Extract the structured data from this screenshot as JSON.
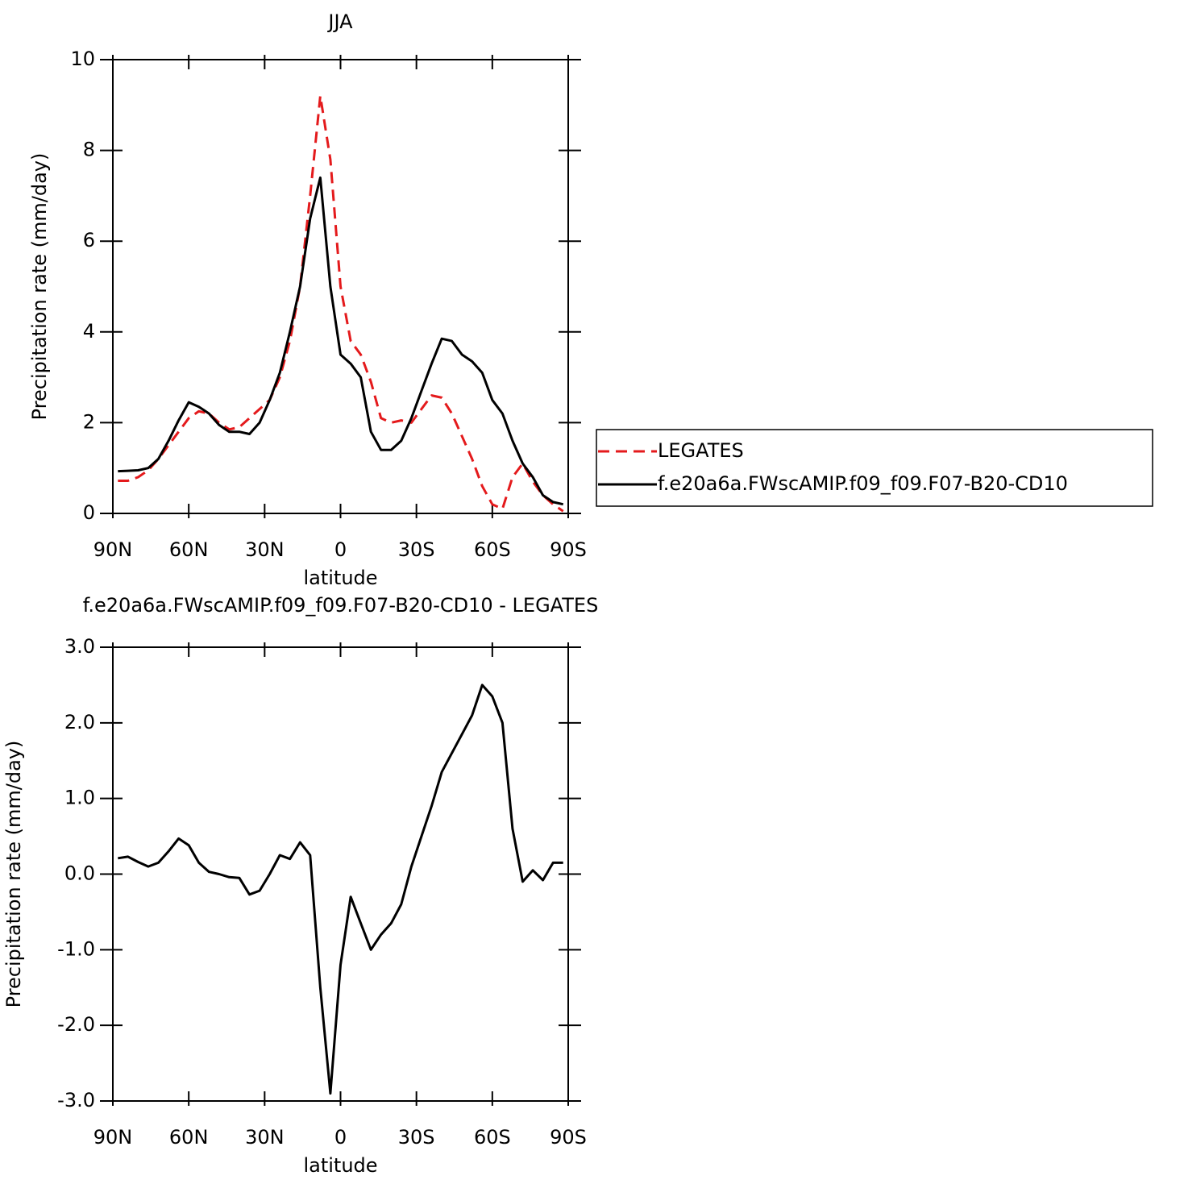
{
  "chart_data": [
    {
      "type": "line",
      "title": "JJA",
      "xlabel": "latitude",
      "ylabel": "Precipitation rate (mm/day)",
      "x": [
        88,
        84,
        80,
        76,
        72,
        68,
        64,
        60,
        56,
        52,
        48,
        44,
        40,
        36,
        32,
        28,
        24,
        20,
        16,
        12,
        8,
        4,
        0,
        -4,
        -8,
        -12,
        -16,
        -20,
        -24,
        -28,
        -32,
        -36,
        -40,
        -44,
        -48,
        -52,
        -56,
        -60,
        -64,
        -68,
        -72,
        -76,
        -80,
        -84,
        -88
      ],
      "series": [
        {
          "name": "LEGATES",
          "color": "#e41a1c",
          "linestyle": "dashed",
          "values": [
            0.72,
            0.72,
            0.8,
            0.95,
            1.2,
            1.5,
            1.8,
            2.1,
            2.25,
            2.2,
            2.0,
            1.85,
            1.9,
            2.1,
            2.3,
            2.5,
            3.0,
            3.8,
            5.0,
            7.0,
            9.2,
            7.8,
            5.0,
            3.8,
            3.5,
            2.9,
            2.1,
            2.0,
            2.05,
            2.0,
            2.3,
            2.6,
            2.55,
            2.2,
            1.7,
            1.2,
            0.6,
            0.2,
            0.1,
            0.8,
            1.1,
            0.7,
            0.4,
            0.2,
            0.05
          ]
        },
        {
          "name": "f.e20a6a.FWscAMIP.f09_f09.F07-B20-CD10",
          "color": "#000000",
          "linestyle": "solid",
          "values": [
            0.93,
            0.94,
            0.95,
            1.0,
            1.2,
            1.6,
            2.05,
            2.45,
            2.35,
            2.2,
            1.95,
            1.8,
            1.8,
            1.75,
            2.0,
            2.5,
            3.1,
            4.0,
            5.0,
            6.5,
            7.4,
            5.0,
            3.5,
            3.3,
            3.0,
            1.8,
            1.4,
            1.4,
            1.6,
            2.1,
            2.7,
            3.3,
            3.85,
            3.8,
            3.5,
            3.35,
            3.1,
            2.5,
            2.2,
            1.6,
            1.1,
            0.8,
            0.4,
            0.25,
            0.2
          ]
        }
      ],
      "xlim": [
        90,
        -90
      ],
      "xticks": [
        {
          "value": 90,
          "label": "90N"
        },
        {
          "value": 60,
          "label": "60N"
        },
        {
          "value": 30,
          "label": "30N"
        },
        0,
        {
          "value": -30,
          "label": "30S"
        },
        {
          "value": -60,
          "label": "60S"
        },
        {
          "value": -90,
          "label": "90S"
        }
      ],
      "ylim": [
        0,
        10
      ],
      "yticks": [
        0,
        2,
        4,
        6,
        8,
        10
      ],
      "legend": "right"
    },
    {
      "type": "line",
      "title": "f.e20a6a.FWscAMIP.f09_f09.F07-B20-CD10 - LEGATES",
      "xlabel": "latitude",
      "ylabel": "Precipitation rate (mm/day)",
      "x": [
        88,
        84,
        80,
        76,
        72,
        68,
        64,
        60,
        56,
        52,
        48,
        44,
        40,
        36,
        32,
        28,
        24,
        20,
        16,
        12,
        8,
        4,
        0,
        -4,
        -8,
        -12,
        -16,
        -20,
        -24,
        -28,
        -32,
        -36,
        -40,
        -44,
        -48,
        -52,
        -56,
        -60,
        -64,
        -68,
        -72,
        -76,
        -80,
        -84,
        -88
      ],
      "color": "#000000",
      "values": [
        0.21,
        0.23,
        0.16,
        0.1,
        0.15,
        0.3,
        0.47,
        0.38,
        0.15,
        0.03,
        0.0,
        -0.04,
        -0.05,
        -0.27,
        -0.22,
        0.0,
        0.25,
        0.2,
        0.42,
        0.25,
        -1.5,
        -2.9,
        -1.2,
        -0.3,
        -0.65,
        -1.0,
        -0.8,
        -0.65,
        -0.4,
        0.1,
        0.5,
        0.9,
        1.35,
        1.6,
        1.85,
        2.1,
        2.5,
        2.35,
        2.0,
        0.6,
        -0.1,
        0.05,
        -0.08,
        0.15,
        0.15
      ],
      "xlim": [
        90,
        -90
      ],
      "xticks": [
        {
          "value": 90,
          "label": "90N"
        },
        {
          "value": 60,
          "label": "60N"
        },
        {
          "value": 30,
          "label": "30N"
        },
        0,
        {
          "value": -30,
          "label": "30S"
        },
        {
          "value": -60,
          "label": "60S"
        },
        {
          "value": -90,
          "label": "90S"
        }
      ],
      "ylim": [
        -3,
        3
      ],
      "yticks": [
        {
          "value": -3,
          "label": "-3.0"
        },
        {
          "value": -2,
          "label": "-2.0"
        },
        {
          "value": -1,
          "label": "-1.0"
        },
        {
          "value": 0,
          "label": "0.0"
        },
        {
          "value": 1,
          "label": "1.0"
        },
        {
          "value": 2,
          "label": "2.0"
        },
        {
          "value": 3,
          "label": "3.0"
        }
      ]
    }
  ]
}
